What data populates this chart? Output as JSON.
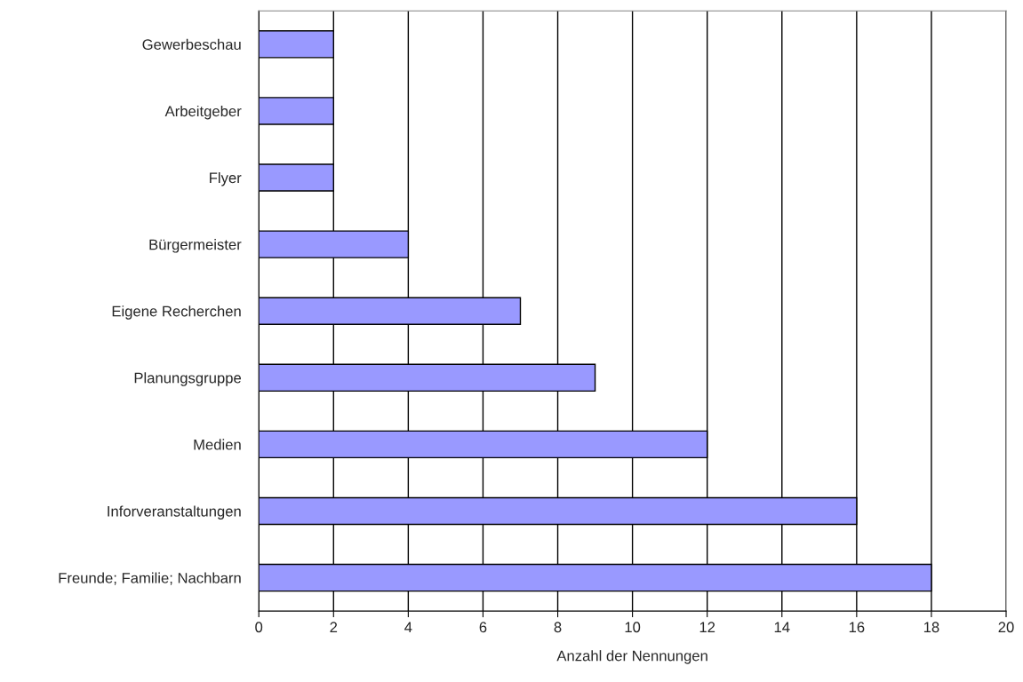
{
  "chart_data": {
    "type": "bar",
    "orientation": "horizontal",
    "xlabel": "Anzahl der Nennungen",
    "categories": [
      "Gewerbeschau",
      "Arbeitgeber",
      "Flyer",
      "Bürgermeister",
      "Eigene Recherchen",
      "Planungsgruppe",
      "Medien",
      "Inforveranstaltungen",
      "Freunde; Familie; Nachbarn"
    ],
    "values": [
      2,
      2,
      2,
      4,
      7,
      9,
      12,
      16,
      18
    ],
    "color": "#9999ff",
    "xlim": [
      0,
      20
    ],
    "xticks": [
      0,
      2,
      4,
      6,
      8,
      10,
      12,
      14,
      16,
      18,
      20
    ],
    "grid": "x"
  }
}
